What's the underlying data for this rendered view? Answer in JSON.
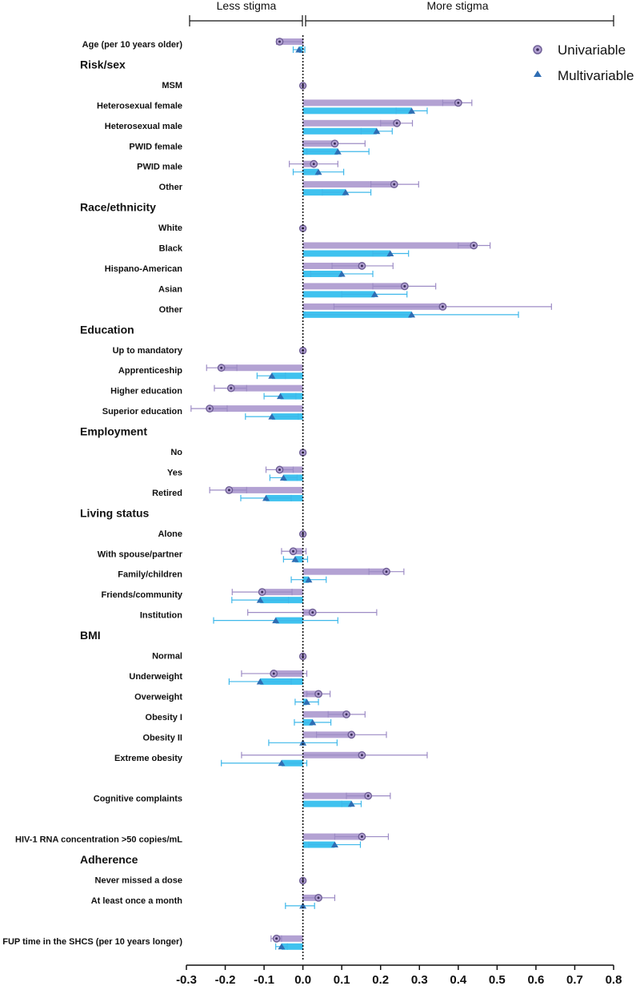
{
  "chart_data": {
    "type": "bar",
    "orientation": "horizontal",
    "xlim": [
      -0.3,
      0.8
    ],
    "x_ticks": [
      "-0.3",
      "-0.2",
      "-0.1",
      "0.0",
      "0.1",
      "0.2",
      "0.3",
      "0.4",
      "0.5",
      "0.6",
      "0.7",
      "0.8"
    ],
    "header_left": "Less stigma",
    "header_right": "More stigma",
    "legend": [
      {
        "name": "Univariable",
        "color": "#b3a2d3",
        "marker_color": "#6f5f96",
        "marker": "circle"
      },
      {
        "name": "Multivariable",
        "color": "#3fc2ef",
        "marker_color": "#2f6db3",
        "marker": "triangle"
      }
    ],
    "rows": [
      {
        "label": "Age (per 10 years older)",
        "uni": [
          -0.06,
          -0.068,
          0.0
        ],
        "multi": [
          -0.01,
          -0.025,
          0.005
        ]
      },
      {
        "group": "Risk/sex"
      },
      {
        "label": "MSM",
        "ref": true
      },
      {
        "label": "Heterosexual female",
        "uni": [
          0.4,
          0.36,
          0.435
        ],
        "multi": [
          0.28,
          0.24,
          0.32
        ]
      },
      {
        "label": "Heterosexual male",
        "uni": [
          0.242,
          0.2,
          0.282
        ],
        "multi": [
          0.19,
          0.15,
          0.23
        ]
      },
      {
        "label": "PWID female",
        "uni": [
          0.082,
          0.0,
          0.16
        ],
        "multi": [
          0.09,
          0.01,
          0.17
        ]
      },
      {
        "label": "PWID male",
        "uni": [
          0.028,
          -0.035,
          0.09
        ],
        "multi": [
          0.04,
          -0.025,
          0.105
        ]
      },
      {
        "label": "Other",
        "uni": [
          0.235,
          0.175,
          0.298
        ],
        "multi": [
          0.11,
          0.05,
          0.175
        ]
      },
      {
        "group": "Race/ethnicity"
      },
      {
        "label": "White",
        "ref": true
      },
      {
        "label": "Black",
        "uni": [
          0.44,
          0.4,
          0.482
        ],
        "multi": [
          0.225,
          0.18,
          0.272
        ]
      },
      {
        "label": "Hispano-American",
        "uni": [
          0.152,
          0.075,
          0.232
        ],
        "multi": [
          0.1,
          0.02,
          0.18
        ]
      },
      {
        "label": "Asian",
        "uni": [
          0.262,
          0.18,
          0.342
        ],
        "multi": [
          0.185,
          0.1,
          0.268
        ]
      },
      {
        "label": "Other",
        "uni": [
          0.36,
          0.08,
          0.64
        ],
        "multi": [
          0.28,
          0.005,
          0.555
        ]
      },
      {
        "group": "Education"
      },
      {
        "label": "Up to mandatory",
        "ref": true
      },
      {
        "label": "Apprenticeship",
        "uni": [
          -0.21,
          -0.248,
          -0.17
        ],
        "multi": [
          -0.08,
          -0.118,
          -0.045
        ]
      },
      {
        "label": "Higher education",
        "uni": [
          -0.185,
          -0.228,
          -0.145
        ],
        "multi": [
          -0.058,
          -0.1,
          -0.018
        ]
      },
      {
        "label": "Superior education",
        "uni": [
          -0.24,
          -0.288,
          -0.195
        ],
        "multi": [
          -0.08,
          -0.148,
          -0.012
        ]
      },
      {
        "group": "Employment"
      },
      {
        "label": "No",
        "ref": true
      },
      {
        "label": "Yes",
        "uni": [
          -0.06,
          -0.095,
          -0.025
        ],
        "multi": [
          -0.05,
          -0.085,
          -0.015
        ]
      },
      {
        "label": "Retired",
        "uni": [
          -0.19,
          -0.24,
          -0.145
        ],
        "multi": [
          -0.095,
          -0.16,
          -0.03
        ]
      },
      {
        "group": "Living status"
      },
      {
        "label": "Alone",
        "ref": true
      },
      {
        "label": "With spouse/partner",
        "uni": [
          -0.025,
          -0.055,
          0.008
        ],
        "multi": [
          -0.02,
          -0.05,
          0.012
        ]
      },
      {
        "label": "Family/children",
        "uni": [
          0.215,
          0.17,
          0.26
        ],
        "multi": [
          0.015,
          -0.03,
          0.06
        ]
      },
      {
        "label": "Friends/community",
        "uni": [
          -0.105,
          -0.182,
          -0.028
        ],
        "multi": [
          -0.11,
          -0.183,
          -0.037
        ]
      },
      {
        "label": "Institution",
        "uni": [
          0.025,
          -0.142,
          0.19
        ],
        "multi": [
          -0.07,
          -0.23,
          0.09
        ]
      },
      {
        "group": "BMI"
      },
      {
        "label": "Normal",
        "ref": true
      },
      {
        "label": "Underweight",
        "uni": [
          -0.075,
          -0.158,
          0.01
        ],
        "multi": [
          -0.11,
          -0.19,
          -0.03
        ]
      },
      {
        "label": "Overweight",
        "uni": [
          0.04,
          0.01,
          0.07
        ],
        "multi": [
          0.01,
          -0.02,
          0.04
        ]
      },
      {
        "label": "Obesity I",
        "uni": [
          0.112,
          0.065,
          0.16
        ],
        "multi": [
          0.025,
          -0.022,
          0.072
        ]
      },
      {
        "label": "Obesity II",
        "uni": [
          0.125,
          0.035,
          0.215
        ],
        "multi": [
          0.0,
          -0.088,
          0.088
        ]
      },
      {
        "label": "Extreme obesity",
        "uni": [
          0.152,
          -0.158,
          0.32
        ],
        "multi": [
          -0.055,
          -0.21,
          0.01
        ]
      },
      {
        "spacer": true
      },
      {
        "label": "Cognitive complaints",
        "uni": [
          0.168,
          0.112,
          0.225
        ],
        "multi": [
          0.125,
          0.1,
          0.15
        ]
      },
      {
        "spacer": true
      },
      {
        "label": "HIV-1 RNA concentration >50 copies/mL",
        "uni": [
          0.152,
          0.082,
          0.22
        ],
        "multi": [
          0.082,
          0.015,
          0.148
        ]
      },
      {
        "group": "Adherence"
      },
      {
        "label": "Never missed a dose",
        "ref": true
      },
      {
        "label": "At least once a month",
        "uni": [
          0.04,
          0.0,
          0.082
        ],
        "multi": [
          0.0,
          -0.045,
          0.03
        ]
      },
      {
        "spacer": true
      },
      {
        "label": "FUP time in the SHCS (per 10 years longer)",
        "uni": [
          -0.068,
          -0.082,
          -0.055
        ],
        "multi": [
          -0.055,
          -0.07,
          -0.04
        ]
      }
    ]
  }
}
